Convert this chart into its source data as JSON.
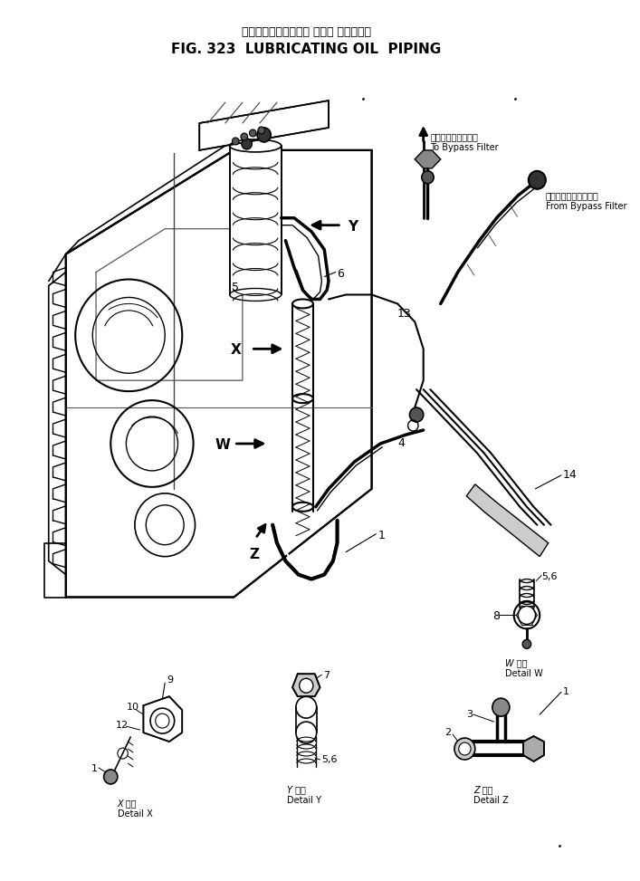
{
  "title_japanese": "ルーブリケーティング オイル パイピング",
  "title_english": "FIG. 323  LUBRICATING OIL  PIPING",
  "bg_color": "#ffffff",
  "fig_width": 7.07,
  "fig_height": 9.73,
  "dpi": 100,
  "to_bypass_jp": "バイパスフィルタへ",
  "to_bypass_en": "To Bypass Filter",
  "from_bypass_jp": "バイパスフィルタから",
  "from_bypass_en": "From Bypass Filter",
  "detail_w_jp": "W 詳細",
  "detail_w_en": "Detail W",
  "detail_x_jp": "X 詳細",
  "detail_x_en": "Detail X",
  "detail_y_jp": "Y 詳細",
  "detail_y_en": "Detail Y",
  "detail_z_jp": "Z 詳細",
  "detail_z_en": "Detail Z"
}
